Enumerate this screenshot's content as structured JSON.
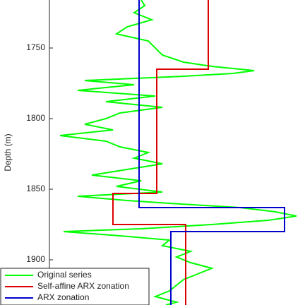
{
  "chart_data": {
    "type": "depth-log",
    "y_label": "Depth (m)",
    "ylim": [
      1716,
      1932
    ],
    "y_inverted": true,
    "yticks": [
      1750,
      1800,
      1850,
      1900
    ],
    "xlim": [
      0,
      362
    ],
    "legend": "lower left",
    "series": [
      {
        "name": "Original series",
        "color": "#00ff00",
        "depth": [
          1716,
          1720,
          1725,
          1730,
          1735,
          1740,
          1745,
          1750,
          1755,
          1760,
          1763,
          1766,
          1768,
          1770,
          1773,
          1776,
          1780,
          1784,
          1788,
          1792,
          1796,
          1800,
          1804,
          1808,
          1812,
          1816,
          1820,
          1824,
          1828,
          1832,
          1836,
          1840,
          1844,
          1848,
          1852,
          1855,
          1858,
          1860,
          1863,
          1866,
          1869,
          1872,
          1875,
          1878,
          1880,
          1883,
          1886,
          1890,
          1894,
          1898,
          1902,
          1906,
          1910,
          1914,
          1918,
          1922,
          1926,
          1930,
          1932
        ],
        "values": [
          130,
          135,
          120,
          145,
          110,
          95,
          140,
          150,
          160,
          190,
          230,
          290,
          260,
          190,
          50,
          120,
          40,
          150,
          80,
          160,
          100,
          80,
          50,
          90,
          15,
          80,
          100,
          140,
          120,
          160,
          110,
          60,
          130,
          95,
          160,
          40,
          110,
          170,
          270,
          320,
          350,
          310,
          230,
          130,
          20,
          100,
          170,
          160,
          200,
          180,
          200,
          230,
          210,
          190,
          180,
          170,
          150,
          180,
          165
        ]
      },
      {
        "name": "Self-affine ARX zonation",
        "color": "#dd0000",
        "depth": [
          1716,
          1765,
          1765,
          1853,
          1853,
          1875,
          1875,
          1932
        ],
        "values": [
          225,
          225,
          152,
          152,
          90,
          90,
          193,
          193
        ]
      },
      {
        "name": "ARX zonation",
        "color": "#0000cc",
        "depth": [
          1716,
          1863,
          1863,
          1880,
          1880,
          1932
        ],
        "values": [
          127,
          127,
          333,
          333,
          172,
          172
        ]
      }
    ]
  }
}
